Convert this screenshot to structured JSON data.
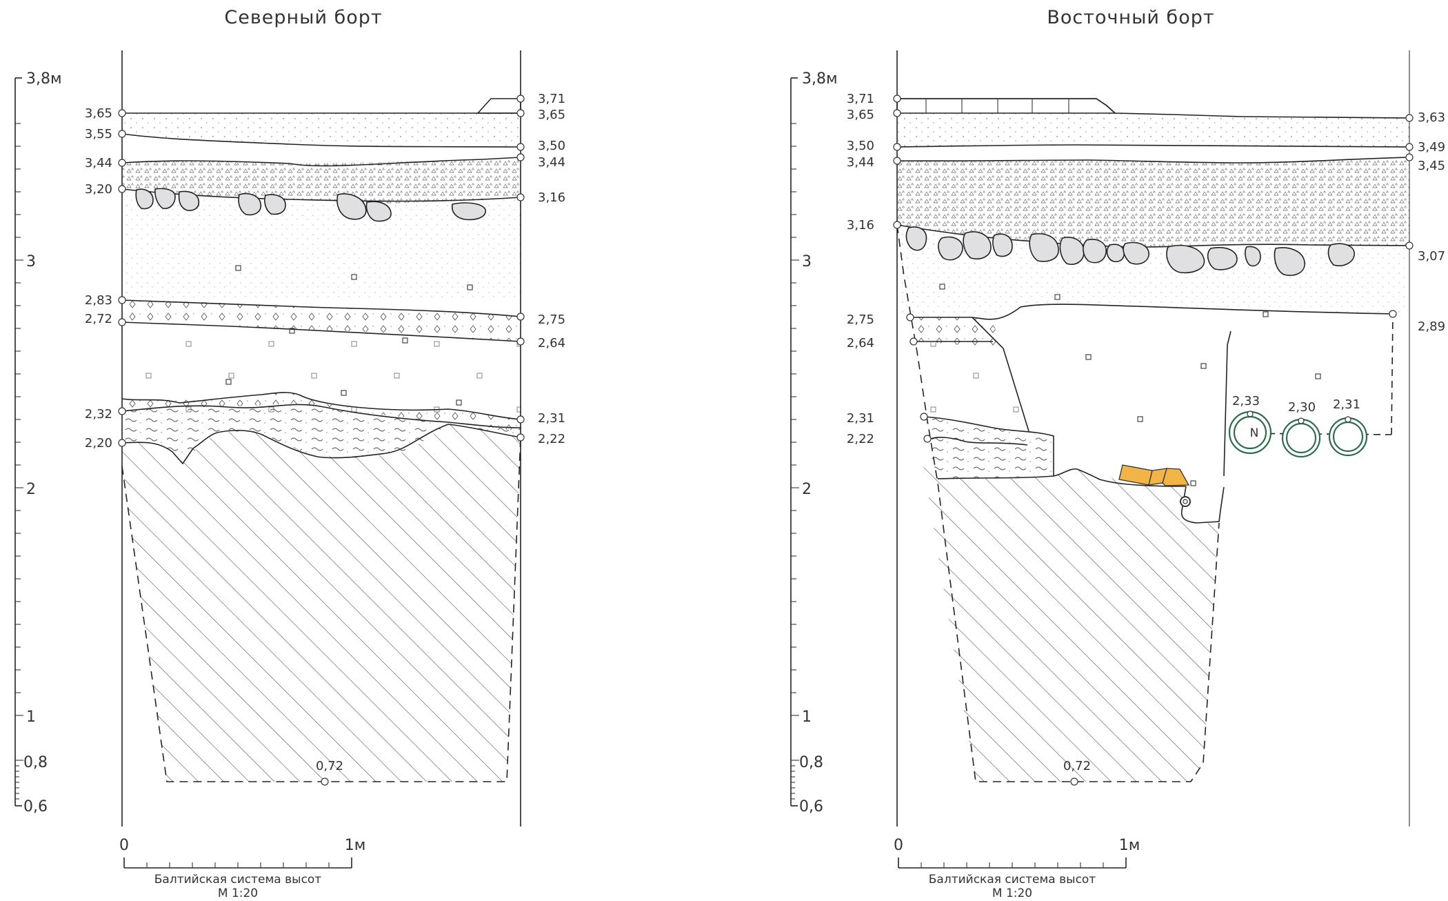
{
  "north": {
    "title": "Северный борт",
    "left_labels": [
      "3,65",
      "3,55",
      "3,44",
      "3,20",
      "2,83",
      "2,72",
      "2,32",
      "2,20"
    ],
    "right_labels": [
      "3,71",
      "3,65",
      "3,50",
      "3,44",
      "3,16",
      "2,75",
      "2,64",
      "2,31",
      "2,22"
    ],
    "bottom_label": "0,72",
    "scale": {
      "zero": "0",
      "one": "1м",
      "caption1": "Балтийская система высот",
      "caption2": "М 1:20"
    }
  },
  "east": {
    "title": "Восточный борт",
    "left_labels": [
      "3,71",
      "3,65",
      "3,50",
      "3,44",
      "3,16",
      "2,75",
      "2,64",
      "2,31",
      "2,22"
    ],
    "right_labels": [
      "3,63",
      "3,49",
      "3,45",
      "3,07",
      "2,89"
    ],
    "pipe_labels": [
      "2,33",
      "2,30",
      "2,31"
    ],
    "pipe_marker": "N",
    "bottom_label": "0,72",
    "scale": {
      "zero": "0",
      "one": "1м",
      "caption1": "Балтийская система высот",
      "caption2": "М 1:20"
    }
  },
  "axis": {
    "labels": [
      "3,8м",
      "3",
      "2",
      "1",
      "0,8",
      "0,6"
    ]
  },
  "colors": {
    "stone_fill": "#e0e0e3",
    "pavement": "#a9a9ab",
    "brick": "#f2b347",
    "pipe": "#2f6b4f"
  }
}
